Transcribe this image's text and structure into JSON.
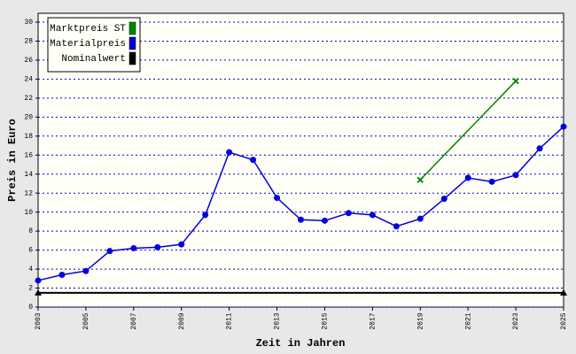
{
  "chart_data": {
    "type": "line",
    "xlabel": "Zeit in Jahren",
    "ylabel": "Preis in Euro",
    "xlim": [
      2003,
      2025
    ],
    "xticks": [
      2003,
      2005,
      2007,
      2009,
      2011,
      2013,
      2015,
      2017,
      2019,
      2021,
      2023,
      2025
    ],
    "ylim": [
      0,
      30
    ],
    "yticks": [
      0,
      2,
      4,
      6,
      8,
      10,
      12,
      14,
      16,
      18,
      20,
      22,
      24,
      26,
      28,
      30
    ],
    "grid": true,
    "legend": "upper left",
    "series": [
      {
        "name": "Marktpreis ST",
        "color": "#008800",
        "marker": "x",
        "x": [
          2019,
          2023
        ],
        "values": [
          13.4,
          23.8
        ]
      },
      {
        "name": "Materialpreis",
        "color": "#0000dd",
        "marker": "circle",
        "x": [
          2003,
          2004,
          2005,
          2006,
          2007,
          2008,
          2009,
          2010,
          2011,
          2012,
          2013,
          2014,
          2015,
          2016,
          2017,
          2018,
          2019,
          2020,
          2021,
          2022,
          2023,
          2024,
          2025
        ],
        "values": [
          2.8,
          3.4,
          3.8,
          5.9,
          6.2,
          6.3,
          6.6,
          9.7,
          16.3,
          15.5,
          11.5,
          9.2,
          9.1,
          9.9,
          9.7,
          8.5,
          9.3,
          11.4,
          13.6,
          13.2,
          13.9,
          16.7,
          19.0
        ]
      },
      {
        "name": "Nominalwert",
        "color": "#000000",
        "marker": "triangle",
        "x": [
          2003,
          2025
        ],
        "values": [
          1.5,
          1.5
        ]
      }
    ]
  }
}
